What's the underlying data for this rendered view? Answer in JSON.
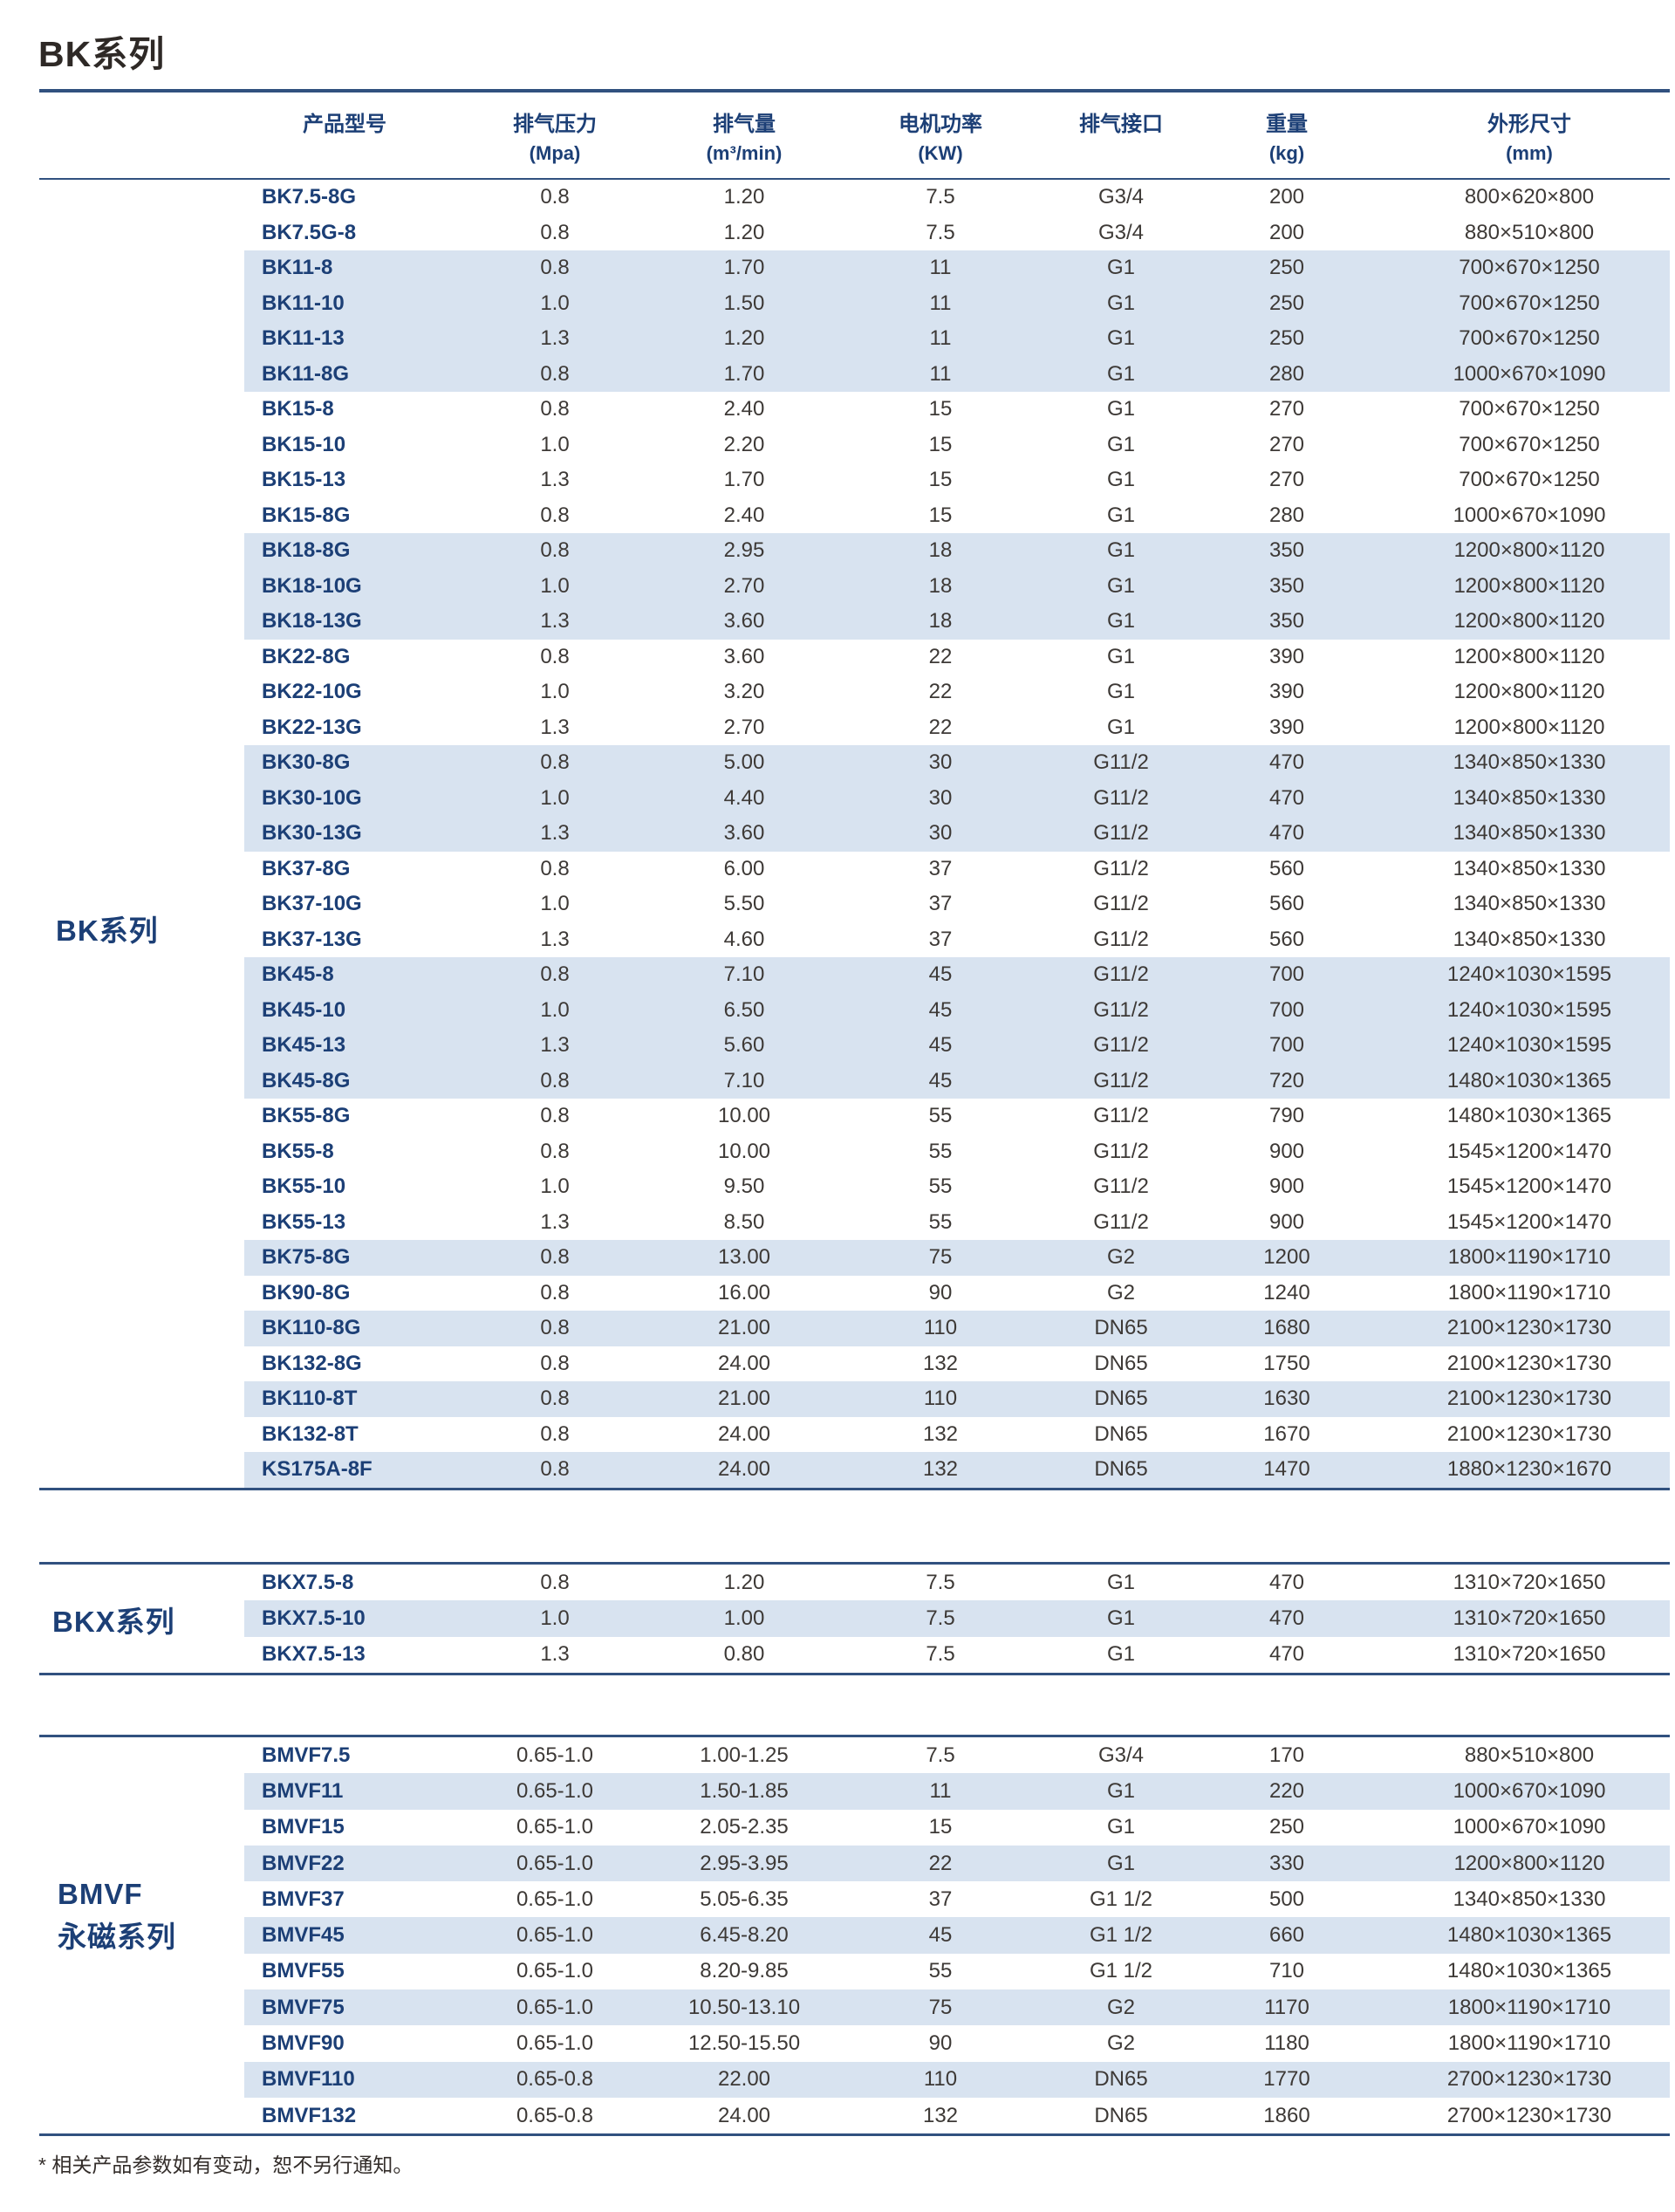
{
  "page": {
    "title": "BK系列",
    "footnote": "* 相关产品参数如有变动，恕不另行通知。"
  },
  "colors": {
    "header_text": "#1c3f76",
    "model_text": "#1c3f76",
    "value_text": "#3d3936",
    "row_highlight": "#d8e3f0",
    "rule_line": "#31517f"
  },
  "table": {
    "headers": [
      {
        "label": "产品型号",
        "unit": ""
      },
      {
        "label": "排气压力",
        "unit": "(Mpa)"
      },
      {
        "label": "排气量",
        "unit": "(m³/min)"
      },
      {
        "label": "电机功率",
        "unit": "(KW)"
      },
      {
        "label": "排气接口",
        "unit": ""
      },
      {
        "label": "重量",
        "unit": "(kg)"
      },
      {
        "label": "外形尺寸",
        "unit": "(mm)"
      }
    ]
  },
  "sections": [
    {
      "name": "BK系列",
      "side_label_lines": [
        "BK系列"
      ],
      "rows": [
        {
          "model": "BK7.5-8G",
          "pressure": "0.8",
          "volume": "1.20",
          "power": "7.5",
          "port": "G3/4",
          "weight": "200",
          "dims": "800×620×800",
          "highlight": false
        },
        {
          "model": "BK7.5G-8",
          "pressure": "0.8",
          "volume": "1.20",
          "power": "7.5",
          "port": "G3/4",
          "weight": "200",
          "dims": "880×510×800",
          "highlight": false
        },
        {
          "model": "BK11-8",
          "pressure": "0.8",
          "volume": "1.70",
          "power": "11",
          "port": "G1",
          "weight": "250",
          "dims": "700×670×1250",
          "highlight": true
        },
        {
          "model": "BK11-10",
          "pressure": "1.0",
          "volume": "1.50",
          "power": "11",
          "port": "G1",
          "weight": "250",
          "dims": "700×670×1250",
          "highlight": true
        },
        {
          "model": "BK11-13",
          "pressure": "1.3",
          "volume": "1.20",
          "power": "11",
          "port": "G1",
          "weight": "250",
          "dims": "700×670×1250",
          "highlight": true
        },
        {
          "model": "BK11-8G",
          "pressure": "0.8",
          "volume": "1.70",
          "power": "11",
          "port": "G1",
          "weight": "280",
          "dims": "1000×670×1090",
          "highlight": true
        },
        {
          "model": "BK15-8",
          "pressure": "0.8",
          "volume": "2.40",
          "power": "15",
          "port": "G1",
          "weight": "270",
          "dims": "700×670×1250",
          "highlight": false
        },
        {
          "model": "BK15-10",
          "pressure": "1.0",
          "volume": "2.20",
          "power": "15",
          "port": "G1",
          "weight": "270",
          "dims": "700×670×1250",
          "highlight": false
        },
        {
          "model": "BK15-13",
          "pressure": "1.3",
          "volume": "1.70",
          "power": "15",
          "port": "G1",
          "weight": "270",
          "dims": "700×670×1250",
          "highlight": false
        },
        {
          "model": "BK15-8G",
          "pressure": "0.8",
          "volume": "2.40",
          "power": "15",
          "port": "G1",
          "weight": "280",
          "dims": "1000×670×1090",
          "highlight": false
        },
        {
          "model": "BK18-8G",
          "pressure": "0.8",
          "volume": "2.95",
          "power": "18",
          "port": "G1",
          "weight": "350",
          "dims": "1200×800×1120",
          "highlight": true
        },
        {
          "model": "BK18-10G",
          "pressure": "1.0",
          "volume": "2.70",
          "power": "18",
          "port": "G1",
          "weight": "350",
          "dims": "1200×800×1120",
          "highlight": true
        },
        {
          "model": "BK18-13G",
          "pressure": "1.3",
          "volume": "3.60",
          "power": "18",
          "port": "G1",
          "weight": "350",
          "dims": "1200×800×1120",
          "highlight": true
        },
        {
          "model": "BK22-8G",
          "pressure": "0.8",
          "volume": "3.60",
          "power": "22",
          "port": "G1",
          "weight": "390",
          "dims": "1200×800×1120",
          "highlight": false
        },
        {
          "model": "BK22-10G",
          "pressure": "1.0",
          "volume": "3.20",
          "power": "22",
          "port": "G1",
          "weight": "390",
          "dims": "1200×800×1120",
          "highlight": false
        },
        {
          "model": "BK22-13G",
          "pressure": "1.3",
          "volume": "2.70",
          "power": "22",
          "port": "G1",
          "weight": "390",
          "dims": "1200×800×1120",
          "highlight": false
        },
        {
          "model": "BK30-8G",
          "pressure": "0.8",
          "volume": "5.00",
          "power": "30",
          "port": "G11/2",
          "weight": "470",
          "dims": "1340×850×1330",
          "highlight": true
        },
        {
          "model": "BK30-10G",
          "pressure": "1.0",
          "volume": "4.40",
          "power": "30",
          "port": "G11/2",
          "weight": "470",
          "dims": "1340×850×1330",
          "highlight": true
        },
        {
          "model": "BK30-13G",
          "pressure": "1.3",
          "volume": "3.60",
          "power": "30",
          "port": "G11/2",
          "weight": "470",
          "dims": "1340×850×1330",
          "highlight": true
        },
        {
          "model": "BK37-8G",
          "pressure": "0.8",
          "volume": "6.00",
          "power": "37",
          "port": "G11/2",
          "weight": "560",
          "dims": "1340×850×1330",
          "highlight": false
        },
        {
          "model": "BK37-10G",
          "pressure": "1.0",
          "volume": "5.50",
          "power": "37",
          "port": "G11/2",
          "weight": "560",
          "dims": "1340×850×1330",
          "highlight": false
        },
        {
          "model": "BK37-13G",
          "pressure": "1.3",
          "volume": "4.60",
          "power": "37",
          "port": "G11/2",
          "weight": "560",
          "dims": "1340×850×1330",
          "highlight": false
        },
        {
          "model": "BK45-8",
          "pressure": "0.8",
          "volume": "7.10",
          "power": "45",
          "port": "G11/2",
          "weight": "700",
          "dims": "1240×1030×1595",
          "highlight": true
        },
        {
          "model": "BK45-10",
          "pressure": "1.0",
          "volume": "6.50",
          "power": "45",
          "port": "G11/2",
          "weight": "700",
          "dims": "1240×1030×1595",
          "highlight": true
        },
        {
          "model": "BK45-13",
          "pressure": "1.3",
          "volume": "5.60",
          "power": "45",
          "port": "G11/2",
          "weight": "700",
          "dims": "1240×1030×1595",
          "highlight": true
        },
        {
          "model": "BK45-8G",
          "pressure": "0.8",
          "volume": "7.10",
          "power": "45",
          "port": "G11/2",
          "weight": "720",
          "dims": "1480×1030×1365",
          "highlight": true
        },
        {
          "model": "BK55-8G",
          "pressure": "0.8",
          "volume": "10.00",
          "power": "55",
          "port": "G11/2",
          "weight": "790",
          "dims": "1480×1030×1365",
          "highlight": false
        },
        {
          "model": "BK55-8",
          "pressure": "0.8",
          "volume": "10.00",
          "power": "55",
          "port": "G11/2",
          "weight": "900",
          "dims": "1545×1200×1470",
          "highlight": false
        },
        {
          "model": "BK55-10",
          "pressure": "1.0",
          "volume": "9.50",
          "power": "55",
          "port": "G11/2",
          "weight": "900",
          "dims": "1545×1200×1470",
          "highlight": false
        },
        {
          "model": "BK55-13",
          "pressure": "1.3",
          "volume": "8.50",
          "power": "55",
          "port": "G11/2",
          "weight": "900",
          "dims": "1545×1200×1470",
          "highlight": false
        },
        {
          "model": "BK75-8G",
          "pressure": "0.8",
          "volume": "13.00",
          "power": "75",
          "port": "G2",
          "weight": "1200",
          "dims": "1800×1190×1710",
          "highlight": true
        },
        {
          "model": "BK90-8G",
          "pressure": "0.8",
          "volume": "16.00",
          "power": "90",
          "port": "G2",
          "weight": "1240",
          "dims": "1800×1190×1710",
          "highlight": false
        },
        {
          "model": "BK110-8G",
          "pressure": "0.8",
          "volume": "21.00",
          "power": "110",
          "port": "DN65",
          "weight": "1680",
          "dims": "2100×1230×1730",
          "highlight": true
        },
        {
          "model": "BK132-8G",
          "pressure": "0.8",
          "volume": "24.00",
          "power": "132",
          "port": "DN65",
          "weight": "1750",
          "dims": "2100×1230×1730",
          "highlight": false
        },
        {
          "model": "BK110-8T",
          "pressure": "0.8",
          "volume": "21.00",
          "power": "110",
          "port": "DN65",
          "weight": "1630",
          "dims": "2100×1230×1730",
          "highlight": true
        },
        {
          "model": "BK132-8T",
          "pressure": "0.8",
          "volume": "24.00",
          "power": "132",
          "port": "DN65",
          "weight": "1670",
          "dims": "2100×1230×1730",
          "highlight": false
        },
        {
          "model": "KS175A-8F",
          "pressure": "0.8",
          "volume": "24.00",
          "power": "132",
          "port": "DN65",
          "weight": "1470",
          "dims": "1880×1230×1670",
          "highlight": true
        }
      ]
    },
    {
      "name": "BKX系列",
      "side_label_lines": [
        "BKX系列"
      ],
      "rows": [
        {
          "model": "BKX7.5-8",
          "pressure": "0.8",
          "volume": "1.20",
          "power": "7.5",
          "port": "G1",
          "weight": "470",
          "dims": "1310×720×1650",
          "highlight": false
        },
        {
          "model": "BKX7.5-10",
          "pressure": "1.0",
          "volume": "1.00",
          "power": "7.5",
          "port": "G1",
          "weight": "470",
          "dims": "1310×720×1650",
          "highlight": true
        },
        {
          "model": "BKX7.5-13",
          "pressure": "1.3",
          "volume": "0.80",
          "power": "7.5",
          "port": "G1",
          "weight": "470",
          "dims": "1310×720×1650",
          "highlight": false
        }
      ]
    },
    {
      "name": "BMVF永磁系列",
      "side_label_lines": [
        "BMVF",
        "永磁系列"
      ],
      "rows": [
        {
          "model": "BMVF7.5",
          "pressure": "0.65-1.0",
          "volume": "1.00-1.25",
          "power": "7.5",
          "port": "G3/4",
          "weight": "170",
          "dims": "880×510×800",
          "highlight": false
        },
        {
          "model": "BMVF11",
          "pressure": "0.65-1.0",
          "volume": "1.50-1.85",
          "power": "11",
          "port": "G1",
          "weight": "220",
          "dims": "1000×670×1090",
          "highlight": true
        },
        {
          "model": "BMVF15",
          "pressure": "0.65-1.0",
          "volume": "2.05-2.35",
          "power": "15",
          "port": "G1",
          "weight": "250",
          "dims": "1000×670×1090",
          "highlight": false
        },
        {
          "model": "BMVF22",
          "pressure": "0.65-1.0",
          "volume": "2.95-3.95",
          "power": "22",
          "port": "G1",
          "weight": "330",
          "dims": "1200×800×1120",
          "highlight": true
        },
        {
          "model": "BMVF37",
          "pressure": "0.65-1.0",
          "volume": "5.05-6.35",
          "power": "37",
          "port": "G1 1/2",
          "weight": "500",
          "dims": "1340×850×1330",
          "highlight": false
        },
        {
          "model": "BMVF45",
          "pressure": "0.65-1.0",
          "volume": "6.45-8.20",
          "power": "45",
          "port": "G1 1/2",
          "weight": "660",
          "dims": "1480×1030×1365",
          "highlight": true
        },
        {
          "model": "BMVF55",
          "pressure": "0.65-1.0",
          "volume": "8.20-9.85",
          "power": "55",
          "port": "G1 1/2",
          "weight": "710",
          "dims": "1480×1030×1365",
          "highlight": false
        },
        {
          "model": "BMVF75",
          "pressure": "0.65-1.0",
          "volume": "10.50-13.10",
          "power": "75",
          "port": "G2",
          "weight": "1170",
          "dims": "1800×1190×1710",
          "highlight": true
        },
        {
          "model": "BMVF90",
          "pressure": "0.65-1.0",
          "volume": "12.50-15.50",
          "power": "90",
          "port": "G2",
          "weight": "1180",
          "dims": "1800×1190×1710",
          "highlight": false
        },
        {
          "model": "BMVF110",
          "pressure": "0.65-0.8",
          "volume": "22.00",
          "power": "110",
          "port": "DN65",
          "weight": "1770",
          "dims": "2700×1230×1730",
          "highlight": true
        },
        {
          "model": "BMVF132",
          "pressure": "0.65-0.8",
          "volume": "24.00",
          "power": "132",
          "port": "DN65",
          "weight": "1860",
          "dims": "2700×1230×1730",
          "highlight": false
        }
      ]
    }
  ]
}
